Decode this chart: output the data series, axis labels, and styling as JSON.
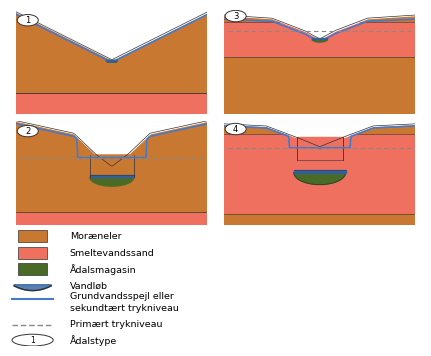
{
  "colors": {
    "moraeneler": "#C97832",
    "smeltevandssand": "#F07060",
    "aadalsmagasin": "#4A6B28",
    "vandloeb_blue": "#3060A0",
    "groundwater_line": "#4878C8",
    "background": "#FFFFFF",
    "outline": "#333333",
    "gray_dash": "#888888"
  },
  "legend": {
    "moraeneler": "Moræneler",
    "smeltevandssand": "Smeltevandssand",
    "aadalsmagasin": "Ådalsmagasin",
    "vandloeb": "Vandløb",
    "grundvand": "Grundvandsspejl eller\nsekundtært trykniveau",
    "primaer": "Primært trykniveau",
    "aadalstype": "Ådalstype"
  }
}
